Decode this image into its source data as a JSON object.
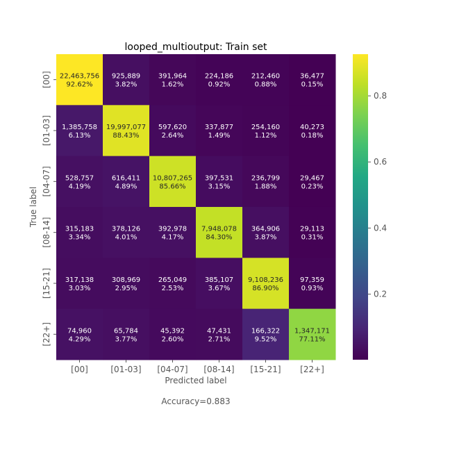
{
  "chart_data": {
    "type": "heatmap",
    "title": "looped_multioutput: Train set",
    "xlabel": "Predicted label",
    "ylabel": "True label",
    "x_categories": [
      "[00]",
      "[01-03]",
      "[04-07]",
      "[08-14]",
      "[15-21]",
      "[22+]"
    ],
    "y_categories": [
      "[00]",
      "[01-03]",
      "[04-07]",
      "[08-14]",
      "[15-21]",
      "[22+]"
    ],
    "counts": [
      [
        "22,463,756",
        "925,889",
        "391,964",
        "224,186",
        "212,460",
        "36,477"
      ],
      [
        "1,385,758",
        "19,997,077",
        "597,620",
        "337,877",
        "254,160",
        "40,273"
      ],
      [
        "528,757",
        "616,411",
        "10,807,265",
        "397,531",
        "236,799",
        "29,467"
      ],
      [
        "315,183",
        "378,126",
        "392,978",
        "7,948,078",
        "364,906",
        "29,113"
      ],
      [
        "317,138",
        "308,969",
        "265,049",
        "385,107",
        "9,108,236",
        "97,359"
      ],
      [
        "74,960",
        "65,784",
        "45,392",
        "47,431",
        "166,322",
        "1,347,171"
      ]
    ],
    "percents": [
      [
        "92.62%",
        "3.82%",
        "1.62%",
        "0.92%",
        "0.88%",
        "0.15%"
      ],
      [
        "6.13%",
        "88.43%",
        "2.64%",
        "1.49%",
        "1.12%",
        "0.18%"
      ],
      [
        "4.19%",
        "4.89%",
        "85.66%",
        "3.15%",
        "1.88%",
        "0.23%"
      ],
      [
        "3.34%",
        "4.01%",
        "4.17%",
        "84.30%",
        "3.87%",
        "0.31%"
      ],
      [
        "3.03%",
        "2.95%",
        "2.53%",
        "3.67%",
        "86.90%",
        "0.93%"
      ],
      [
        "4.29%",
        "3.77%",
        "2.60%",
        "2.71%",
        "9.52%",
        "77.11%"
      ]
    ],
    "values": [
      [
        0.9262,
        0.0382,
        0.0162,
        0.0092,
        0.0088,
        0.0015
      ],
      [
        0.0613,
        0.8843,
        0.0264,
        0.0149,
        0.0112,
        0.0018
      ],
      [
        0.0419,
        0.0489,
        0.8566,
        0.0315,
        0.0188,
        0.0023
      ],
      [
        0.0334,
        0.0401,
        0.0417,
        0.843,
        0.0387,
        0.0031
      ],
      [
        0.0303,
        0.0295,
        0.0253,
        0.0367,
        0.869,
        0.0093
      ],
      [
        0.0429,
        0.0377,
        0.026,
        0.0271,
        0.0952,
        0.7711
      ]
    ],
    "colorbar": {
      "colormap": "viridis",
      "range": [
        0.0015,
        0.9262
      ],
      "ticks": [
        0.2,
        0.4,
        0.6,
        0.8
      ],
      "tick_labels": [
        "0.2",
        "0.4",
        "0.6",
        "0.8"
      ]
    },
    "footer": "Accuracy=0.883",
    "grid": false,
    "legend": "colorbar-right"
  }
}
